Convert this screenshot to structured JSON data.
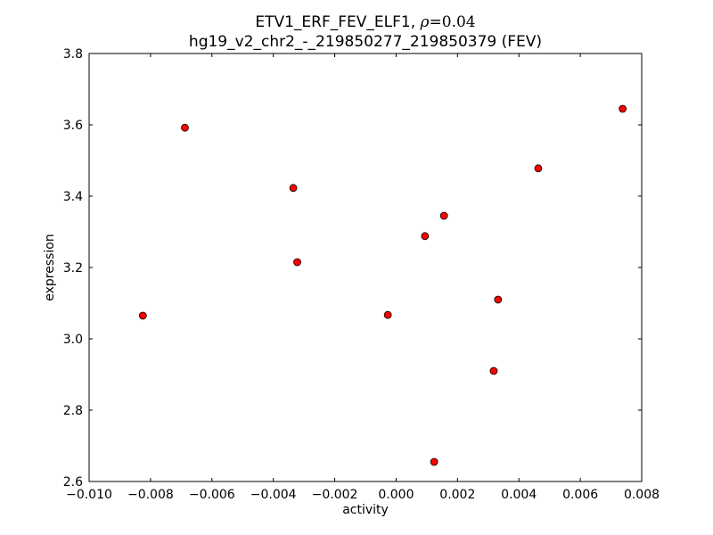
{
  "chart_data": {
    "type": "scatter",
    "title_prefix": "ETV1_ERF_FEV_ELF1, ",
    "title_rho_symbol": "ρ",
    "title_rho_value": "=0.04",
    "subtitle": "hg19_v2_chr2_-_219850277_219850379 (FEV)",
    "xlabel": "activity",
    "ylabel": "expression",
    "xlim": [
      -0.01,
      0.008
    ],
    "ylim": [
      2.6,
      3.8
    ],
    "xticks": [
      -0.01,
      -0.008,
      -0.006,
      -0.004,
      -0.002,
      0.0,
      0.002,
      0.004,
      0.006,
      0.008
    ],
    "xtick_labels": [
      "−0.010",
      "−0.008",
      "−0.006",
      "−0.004",
      "−0.002",
      "0.000",
      "0.002",
      "0.004",
      "0.006",
      "0.008"
    ],
    "yticks": [
      2.6,
      2.8,
      3.0,
      3.2,
      3.4,
      3.6,
      3.8
    ],
    "ytick_labels": [
      "2.6",
      "2.8",
      "3.0",
      "3.2",
      "3.4",
      "3.6",
      "3.8"
    ],
    "grid": false,
    "marker_color": "#ff0000",
    "marker_edge_color": "#000000",
    "points": [
      {
        "x": -0.00825,
        "y": 3.065
      },
      {
        "x": -0.00688,
        "y": 3.592
      },
      {
        "x": -0.00335,
        "y": 3.423
      },
      {
        "x": -0.00322,
        "y": 3.215
      },
      {
        "x": -0.00027,
        "y": 3.067
      },
      {
        "x": 0.00094,
        "y": 3.288
      },
      {
        "x": 0.00124,
        "y": 2.655
      },
      {
        "x": 0.00156,
        "y": 3.345
      },
      {
        "x": 0.00318,
        "y": 2.91
      },
      {
        "x": 0.00332,
        "y": 3.11
      },
      {
        "x": 0.00463,
        "y": 3.478
      },
      {
        "x": 0.00738,
        "y": 3.645
      }
    ]
  }
}
